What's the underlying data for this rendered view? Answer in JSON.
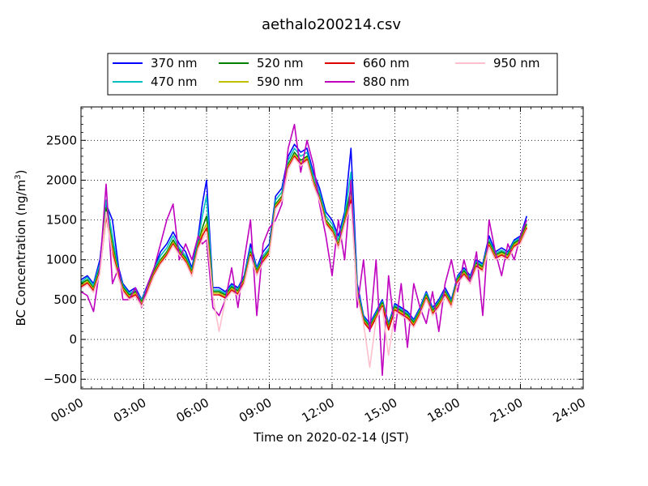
{
  "chart_data": {
    "type": "line",
    "title": "aethalo200214.csv",
    "xlabel": "Time on 2020-02-14 (JST)",
    "ylabel_main": "BC Concentration (ng/m",
    "ylabel_sup": "3",
    "ylabel_end": ")",
    "xlim": [
      0,
      24
    ],
    "ylim": [
      -620,
      2920
    ],
    "xticks": [
      {
        "value": 0,
        "label": "00:00"
      },
      {
        "value": 3,
        "label": "03:00"
      },
      {
        "value": 6,
        "label": "06:00"
      },
      {
        "value": 9,
        "label": "09:00"
      },
      {
        "value": 12,
        "label": "12:00"
      },
      {
        "value": 15,
        "label": "15:00"
      },
      {
        "value": 18,
        "label": "18:00"
      },
      {
        "value": 21,
        "label": "21:00"
      },
      {
        "value": 24,
        "label": "24:00"
      }
    ],
    "yticks": [
      {
        "value": -500,
        "label": "−500"
      },
      {
        "value": 0,
        "label": "0"
      },
      {
        "value": 500,
        "label": "500"
      },
      {
        "value": 1000,
        "label": "1000"
      },
      {
        "value": 1500,
        "label": "1500"
      },
      {
        "value": 2000,
        "label": "2000"
      },
      {
        "value": 2500,
        "label": "2500"
      }
    ],
    "grid": true,
    "legend_placement": "top-center",
    "x_hours": [
      0,
      0.3,
      0.6,
      0.9,
      1.2,
      1.5,
      1.8,
      2.0,
      2.3,
      2.6,
      2.9,
      3.2,
      3.5,
      3.8,
      4.1,
      4.4,
      4.7,
      5.0,
      5.3,
      5.6,
      5.8,
      6.0,
      6.3,
      6.6,
      6.9,
      7.2,
      7.5,
      7.8,
      8.1,
      8.4,
      8.7,
      9.0,
      9.3,
      9.6,
      9.9,
      10.2,
      10.5,
      10.8,
      11.1,
      11.4,
      11.7,
      12.0,
      12.3,
      12.6,
      12.9,
      13.2,
      13.5,
      13.8,
      14.1,
      14.4,
      14.7,
      15.0,
      15.3,
      15.6,
      15.9,
      16.2,
      16.5,
      16.8,
      17.1,
      17.4,
      17.7,
      18.0,
      18.3,
      18.6,
      18.9,
      19.2,
      19.5,
      19.8,
      20.1,
      20.4,
      20.7,
      21.0,
      21.3
    ],
    "series": [
      {
        "name": "370 nm",
        "color": "#0000ff",
        "values": [
          750,
          800,
          700,
          1000,
          1700,
          1500,
          900,
          700,
          600,
          650,
          500,
          700,
          900,
          1100,
          1200,
          1350,
          1200,
          1100,
          900,
          1300,
          1700,
          2000,
          650,
          650,
          600,
          700,
          650,
          800,
          1200,
          900,
          1100,
          1200,
          1800,
          1900,
          2300,
          2450,
          2350,
          2400,
          2100,
          1900,
          1600,
          1500,
          1300,
          1600,
          2400,
          700,
          300,
          200,
          350,
          500,
          200,
          450,
          400,
          350,
          250,
          400,
          600,
          400,
          500,
          650,
          500,
          800,
          900,
          800,
          1000,
          950,
          1300,
          1100,
          1150,
          1100,
          1250,
          1300,
          1550
        ]
      },
      {
        "name": "470 nm",
        "color": "#00bfbf",
        "values": [
          720,
          780,
          680,
          950,
          1750,
          1300,
          850,
          680,
          580,
          620,
          490,
          680,
          880,
          1050,
          1150,
          1300,
          1150,
          1050,
          870,
          1250,
          1550,
          1800,
          620,
          620,
          580,
          680,
          630,
          780,
          1150,
          880,
          1050,
          1150,
          1750,
          1850,
          2250,
          2400,
          2300,
          2350,
          2050,
          1850,
          1550,
          1450,
          1250,
          1550,
          2100,
          650,
          280,
          180,
          330,
          480,
          180,
          430,
          380,
          330,
          230,
          380,
          580,
          380,
          480,
          620,
          480,
          780,
          880,
          780,
          980,
          930,
          1250,
          1080,
          1120,
          1080,
          1230,
          1280,
          1500
        ]
      },
      {
        "name": "520 nm",
        "color": "#008000",
        "values": [
          700,
          750,
          650,
          900,
          1650,
          1200,
          820,
          660,
          560,
          600,
          470,
          660,
          860,
          1000,
          1100,
          1250,
          1120,
          1020,
          850,
          1200,
          1400,
          1550,
          600,
          600,
          560,
          660,
          610,
          760,
          1100,
          860,
          1020,
          1120,
          1700,
          1800,
          2200,
          2350,
          2250,
          2300,
          2000,
          1800,
          1500,
          1400,
          1200,
          1500,
          1900,
          600,
          260,
          160,
          310,
          460,
          160,
          410,
          360,
          310,
          210,
          360,
          560,
          360,
          460,
          600,
          460,
          760,
          860,
          760,
          960,
          910,
          1220,
          1060,
          1100,
          1060,
          1210,
          1260,
          1450
        ]
      },
      {
        "name": "590 nm",
        "color": "#bfbf00",
        "values": [
          680,
          730,
          630,
          870,
          1600,
          1150,
          800,
          640,
          540,
          580,
          450,
          640,
          840,
          980,
          1080,
          1220,
          1100,
          1000,
          830,
          1180,
          1350,
          1450,
          580,
          580,
          540,
          640,
          590,
          740,
          1080,
          840,
          1000,
          1100,
          1680,
          1780,
          2180,
          2320,
          2220,
          2280,
          1980,
          1780,
          1480,
          1380,
          1180,
          1480,
          1800,
          580,
          240,
          140,
          290,
          440,
          140,
          390,
          340,
          290,
          190,
          340,
          540,
          340,
          440,
          580,
          440,
          740,
          840,
          740,
          940,
          890,
          1200,
          1040,
          1080,
          1040,
          1190,
          1240,
          1420
        ]
      },
      {
        "name": "660 nm",
        "color": "#e00000",
        "values": [
          660,
          710,
          610,
          850,
          1550,
          1100,
          780,
          620,
          520,
          560,
          430,
          620,
          820,
          960,
          1060,
          1200,
          1080,
          980,
          810,
          1160,
          1300,
          1400,
          560,
          560,
          520,
          620,
          570,
          720,
          1060,
          820,
          980,
          1080,
          1660,
          1760,
          2160,
          2300,
          2200,
          2260,
          1960,
          1760,
          1460,
          1360,
          1160,
          1460,
          1750,
          560,
          220,
          120,
          270,
          420,
          120,
          370,
          320,
          270,
          170,
          320,
          520,
          320,
          420,
          560,
          420,
          720,
          820,
          720,
          920,
          870,
          1180,
          1020,
          1060,
          1020,
          1170,
          1220,
          1400
        ]
      },
      {
        "name": "880 nm",
        "color": "#bf00bf",
        "values": [
          600,
          550,
          350,
          900,
          1950,
          700,
          900,
          500,
          500,
          650,
          400,
          700,
          900,
          1200,
          1500,
          1700,
          1000,
          1200,
          1000,
          1300,
          1200,
          1250,
          400,
          300,
          500,
          900,
          400,
          1000,
          1500,
          300,
          1200,
          1400,
          1500,
          1700,
          2400,
          2700,
          2100,
          2500,
          2200,
          1700,
          1300,
          800,
          1500,
          1000,
          2000,
          400,
          1000,
          100,
          1000,
          -450,
          800,
          100,
          700,
          -100,
          700,
          400,
          200,
          600,
          100,
          700,
          1000,
          600,
          1000,
          700,
          1100,
          300,
          1500,
          1100,
          800,
          1200,
          1000,
          1300,
          1500
        ]
      },
      {
        "name": "950 nm",
        "color": "#ffc0cb",
        "values": [
          640,
          690,
          590,
          820,
          1600,
          1050,
          760,
          600,
          500,
          540,
          410,
          600,
          800,
          940,
          1040,
          1180,
          1060,
          960,
          790,
          1140,
          1250,
          1350,
          540,
          100,
          500,
          600,
          550,
          700,
          1040,
          800,
          960,
          1060,
          1640,
          1740,
          2140,
          2280,
          2180,
          2240,
          1940,
          1740,
          1440,
          1340,
          1140,
          1440,
          1700,
          540,
          200,
          -350,
          250,
          400,
          -200,
          350,
          300,
          250,
          150,
          300,
          500,
          300,
          400,
          540,
          400,
          700,
          800,
          700,
          900,
          850,
          1160,
          1000,
          1040,
          1000,
          1150,
          1200,
          1380
        ]
      }
    ]
  }
}
